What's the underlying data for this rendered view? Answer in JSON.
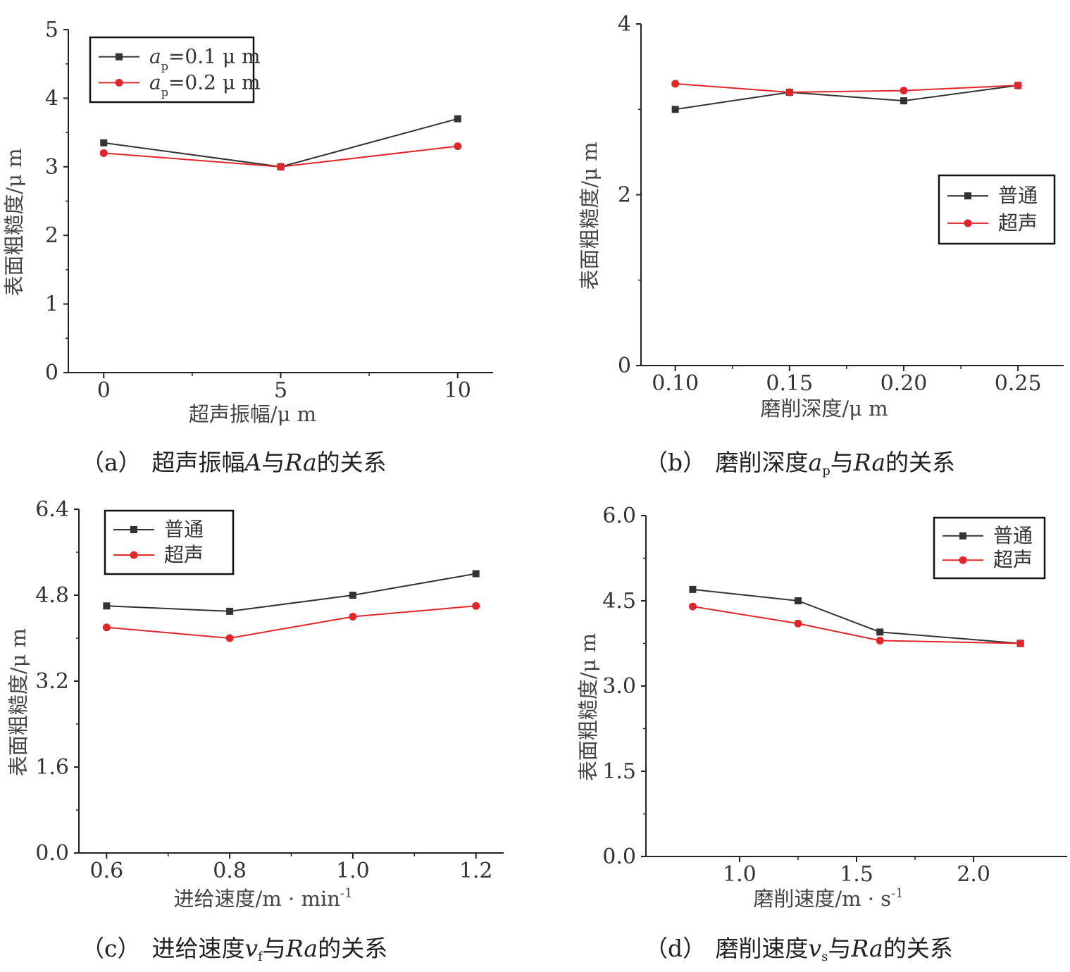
{
  "colors": {
    "black_series": "#333333",
    "red_series": "#e0262b"
  },
  "chart_data": [
    {
      "id": "a",
      "type": "line",
      "xlabel": "超声振幅/μ m",
      "ylabel": "表面粗糙度/μ m",
      "x": [
        0,
        5,
        10
      ],
      "xticks": [
        "0",
        "5",
        "10"
      ],
      "ylim": [
        0,
        5
      ],
      "yticks": [
        "0",
        "1",
        "2",
        "3",
        "4",
        "5"
      ],
      "legend_position": "top-left",
      "series": [
        {
          "name": "ap=0.1 μ m",
          "legend_main": "a",
          "legend_sub": "p",
          "legend_rest": "=0.1 μ m",
          "marker": "square",
          "color": "#333333",
          "values": [
            3.35,
            3.0,
            3.7
          ]
        },
        {
          "name": "ap=0.2 μ m",
          "legend_main": "a",
          "legend_sub": "p",
          "legend_rest": "=0.2 μ m",
          "marker": "circle",
          "color": "#e0262b",
          "values": [
            3.2,
            3.0,
            3.3
          ]
        }
      ],
      "caption": {
        "tag": "（a）",
        "parts": [
          "超声振幅",
          "A",
          "与",
          "Ra",
          "的关系"
        ]
      }
    },
    {
      "id": "b",
      "type": "line",
      "xlabel": "磨削深度/μ m",
      "ylabel": "表面粗糙度/μ m",
      "x": [
        0.1,
        0.15,
        0.2,
        0.25
      ],
      "xticks": [
        "0.10",
        "0.15",
        "0.20",
        "0.25"
      ],
      "ylim": [
        0,
        4
      ],
      "yticks": [
        "0",
        "2",
        "4"
      ],
      "legend_position": "right",
      "series": [
        {
          "name": "普通",
          "marker": "square",
          "color": "#333333",
          "values": [
            3.0,
            3.2,
            3.1,
            3.28
          ]
        },
        {
          "name": "超声",
          "marker": "circle",
          "color": "#e0262b",
          "values": [
            3.3,
            3.2,
            3.22,
            3.28
          ]
        }
      ],
      "caption": {
        "tag": "（b）",
        "parts": [
          "磨削深度",
          "a",
          "p",
          "与",
          "Ra",
          "的关系"
        ]
      }
    },
    {
      "id": "c",
      "type": "line",
      "xlabel": "进给速度/m · min",
      "xlabel_sup": "-1",
      "ylabel": "表面粗糙度/μ m",
      "x": [
        0.6,
        0.8,
        1.0,
        1.2
      ],
      "xticks": [
        "0.6",
        "0.8",
        "1.0",
        "1.2"
      ],
      "ylim": [
        0,
        6.4
      ],
      "yticks": [
        "0.0",
        "1.6",
        "3.2",
        "4.8",
        "6.4"
      ],
      "legend_position": "top-left",
      "series": [
        {
          "name": "普通",
          "marker": "square",
          "color": "#333333",
          "values": [
            4.6,
            4.5,
            4.8,
            5.2
          ]
        },
        {
          "name": "超声",
          "marker": "circle",
          "color": "#e0262b",
          "values": [
            4.2,
            4.0,
            4.4,
            4.6
          ]
        }
      ],
      "caption": {
        "tag": "（c）",
        "parts": [
          "进给速度",
          "v",
          "f",
          "与",
          "Ra",
          "的关系"
        ]
      }
    },
    {
      "id": "d",
      "type": "line",
      "xlabel": "磨削速度/m · s",
      "xlabel_sup": "-1",
      "ylabel": "表面粗糙度/μ m",
      "x": [
        0.8,
        1.25,
        1.6,
        2.2
      ],
      "xticks": [
        "1.0",
        "1.5",
        "2.0"
      ],
      "xtick_values": [
        1.0,
        1.5,
        2.0
      ],
      "ylim": [
        0,
        6.0
      ],
      "yticks": [
        "0.0",
        "1.5",
        "3.0",
        "4.5",
        "6.0"
      ],
      "legend_position": "top-right",
      "series": [
        {
          "name": "普通",
          "marker": "square",
          "color": "#333333",
          "values": [
            4.7,
            4.5,
            3.95,
            3.75
          ]
        },
        {
          "name": "超声",
          "marker": "circle",
          "color": "#e0262b",
          "values": [
            4.4,
            4.1,
            3.8,
            3.75
          ]
        }
      ],
      "caption": {
        "tag": "（d）",
        "parts": [
          "磨削速度",
          "v",
          "s",
          "与",
          "Ra",
          "的关系"
        ]
      }
    }
  ]
}
